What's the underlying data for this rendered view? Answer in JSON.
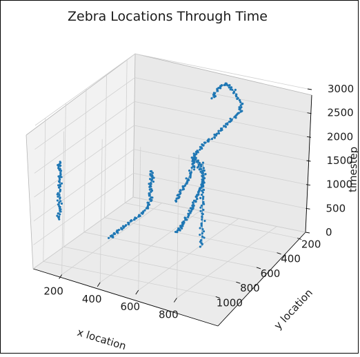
{
  "chart_data": {
    "type": "scatter",
    "projection": "3d",
    "title": "Zebra Locations Through Time",
    "xlabel": "x location",
    "ylabel": "y location",
    "zlabel": "timestep",
    "xlim": [
      50,
      950
    ],
    "ylim": [
      120,
      1100
    ],
    "zlim": [
      0,
      3000
    ],
    "xticks": [
      "200",
      "400",
      "600",
      "800"
    ],
    "yticks": [
      "200",
      "400",
      "600",
      "800",
      "1000"
    ],
    "zticks": [
      "0",
      "500",
      "1000",
      "1500",
      "2000",
      "2500",
      "3000"
    ],
    "grid": true,
    "series_color": "#1f77b4",
    "series": [
      {
        "values": [
          [
            130,
            1000,
            950
          ],
          [
            130,
            1000,
            1200
          ],
          [
            130,
            1000,
            1450
          ],
          [
            130,
            1000,
            1700
          ],
          [
            130,
            1000,
            1950
          ],
          [
            130,
            1000,
            2150
          ]
        ]
      },
      {
        "values": [
          [
            230,
            680,
            150
          ],
          [
            250,
            660,
            250
          ],
          [
            290,
            640,
            400
          ],
          [
            330,
            620,
            550
          ],
          [
            370,
            600,
            750
          ],
          [
            390,
            590,
            950
          ],
          [
            380,
            580,
            1150
          ],
          [
            385,
            575,
            1350
          ],
          [
            380,
            570,
            1500
          ]
        ]
      },
      {
        "values": [
          [
            440,
            420,
            50
          ],
          [
            455,
            410,
            150
          ],
          [
            470,
            400,
            300
          ],
          [
            490,
            390,
            450
          ],
          [
            500,
            380,
            600
          ],
          [
            520,
            370,
            800
          ],
          [
            535,
            360,
            1000
          ],
          [
            540,
            350,
            1200
          ],
          [
            500,
            340,
            1400
          ],
          [
            480,
            330,
            1550
          ],
          [
            510,
            320,
            1750
          ],
          [
            560,
            310,
            1950
          ],
          [
            600,
            300,
            2150
          ],
          [
            640,
            290,
            2350
          ],
          [
            690,
            285,
            2550
          ],
          [
            690,
            280,
            2750
          ],
          [
            640,
            270,
            2950
          ],
          [
            600,
            265,
            3050
          ],
          [
            560,
            260,
            2900
          ],
          [
            520,
            250,
            2650
          ]
        ]
      },
      {
        "values": [
          [
            640,
            820,
            1450
          ],
          [
            660,
            810,
            1650
          ],
          [
            680,
            800,
            1850
          ],
          [
            700,
            790,
            2050
          ],
          [
            710,
            780,
            2250
          ],
          [
            700,
            770,
            2350
          ]
        ]
      },
      {
        "values": [
          [
            890,
            1030,
            1050
          ],
          [
            890,
            1030,
            1400
          ],
          [
            890,
            1030,
            1750
          ],
          [
            890,
            1030,
            2100
          ],
          [
            890,
            1030,
            2450
          ],
          [
            890,
            1030,
            2800
          ]
        ]
      }
    ]
  }
}
